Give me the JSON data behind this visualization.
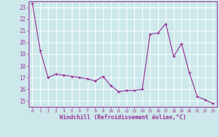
{
  "x": [
    0,
    1,
    2,
    3,
    4,
    5,
    6,
    7,
    8,
    9,
    10,
    11,
    12,
    13,
    14,
    15,
    16,
    17,
    18,
    19,
    20,
    21,
    22,
    23
  ],
  "y": [
    23.3,
    19.3,
    17.0,
    17.3,
    17.2,
    17.1,
    17.0,
    16.9,
    16.7,
    17.1,
    16.3,
    15.8,
    15.9,
    15.9,
    16.0,
    20.7,
    20.8,
    21.6,
    18.8,
    19.9,
    17.4,
    15.4,
    15.1,
    14.8
  ],
  "line_color": "#993399",
  "marker": "+",
  "marker_size": 3.5,
  "linewidth": 0.9,
  "bg_color": "#cce8eb",
  "grid_color": "#ffffff",
  "xlabel": "Windchill (Refroidissement éolien,°C)",
  "xlabel_color": "#993399",
  "tick_color": "#993399",
  "label_color": "#993399",
  "ylim": [
    14.5,
    23.5
  ],
  "yticks": [
    15,
    16,
    17,
    18,
    19,
    20,
    21,
    22,
    23
  ],
  "xlim": [
    -0.5,
    23.5
  ],
  "xticks": [
    0,
    1,
    2,
    3,
    4,
    5,
    6,
    7,
    8,
    9,
    10,
    11,
    12,
    13,
    14,
    15,
    16,
    17,
    18,
    19,
    20,
    21,
    22,
    23
  ]
}
